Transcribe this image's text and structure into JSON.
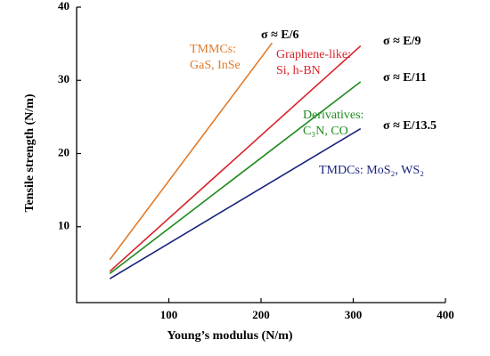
{
  "chart_data": {
    "type": "line",
    "x_label": "Young’s modulus (N/m)",
    "y_label": "Tensile strength (N/m)",
    "xlim": [
      0,
      400
    ],
    "xticks": [
      100,
      200,
      300,
      400
    ],
    "ylim": [
      0,
      40
    ],
    "yticks": [
      10,
      20,
      30,
      40
    ],
    "series": [
      {
        "color": "#e07b2a",
        "x": [
          36,
          212
        ],
        "values": [
          5.5,
          35.1
        ],
        "formula": "σ ≈ E/6",
        "label_lines": [
          "TMMCs:",
          "GaS, InSe"
        ]
      },
      {
        "color": "#d8232a",
        "x": [
          36,
          308
        ],
        "values": [
          3.9,
          34.7
        ],
        "formula": "σ ≈ E/9",
        "label_lines": [
          "Graphene-like:",
          "Si, h-BN"
        ]
      },
      {
        "color": "#1e8a1e",
        "x": [
          36,
          308
        ],
        "values": [
          3.6,
          29.8
        ],
        "formula": "σ ≈ E/11",
        "label_lines": [
          "Derivatives:",
          "C₃N, CO"
        ]
      },
      {
        "color": "#1a237e",
        "x": [
          36,
          308
        ],
        "values": [
          2.9,
          23.4
        ],
        "formula": "σ ≈ E/13.5",
        "label_lines": [
          "TMDCs: MoS₂, WS₂"
        ]
      }
    ]
  }
}
